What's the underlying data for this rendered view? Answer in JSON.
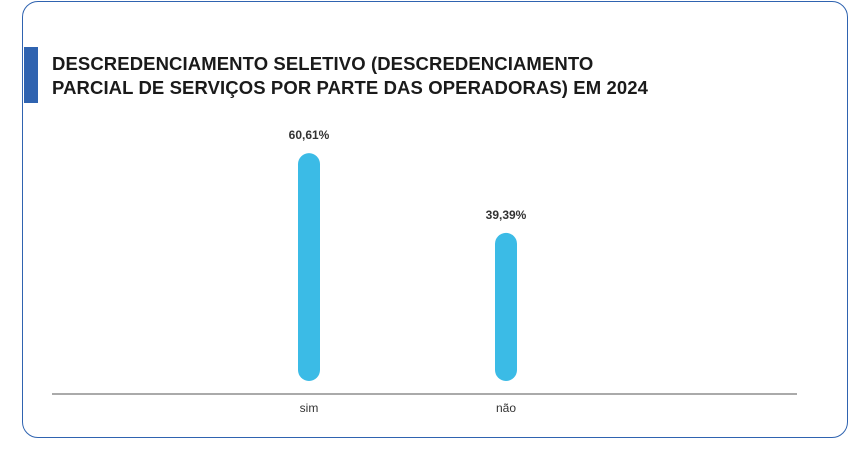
{
  "title_lines": [
    "DESCREDENCIAMENTO SELETIVO (DESCREDENCIAMENTO",
    "PARCIAL DE SERVIÇOS POR PARTE DAS OPERADORAS) EM 2024"
  ],
  "colors": {
    "bar": "#3bbbe6",
    "accent": "#2f63b0",
    "axis": "#555555"
  },
  "chart_data": {
    "type": "bar",
    "title": "DESCREDENCIAMENTO SELETIVO (DESCREDENCIAMENTO PARCIAL DE SERVIÇOS POR PARTE DAS OPERADORAS) EM 2024",
    "categories": [
      "sim",
      "não"
    ],
    "values": [
      60.61,
      39.39
    ],
    "value_labels": [
      "60,61%",
      "39,39%"
    ],
    "xlabel": "",
    "ylabel": "",
    "ylim": [
      0,
      100
    ],
    "grid": false,
    "legend": "none"
  }
}
